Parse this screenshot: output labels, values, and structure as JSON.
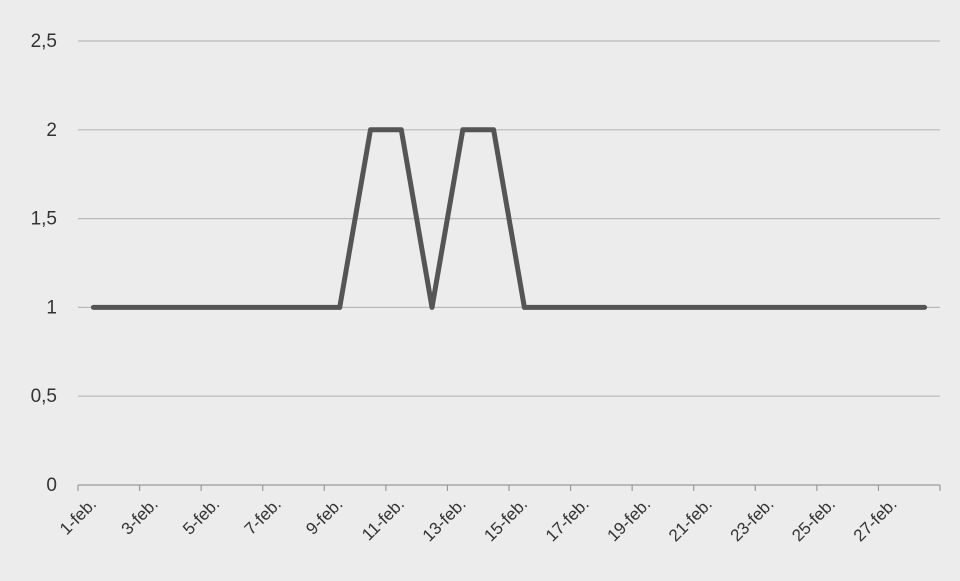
{
  "chart_data": {
    "type": "line",
    "title": "",
    "xlabel": "",
    "ylabel": "",
    "ylim": [
      0,
      2.5
    ],
    "yticks": [
      "0",
      "0,5",
      "1",
      "1,5",
      "2",
      "2,5"
    ],
    "ytick_values": [
      0,
      0.5,
      1,
      1.5,
      2,
      2.5
    ],
    "x": [
      "1-feb.",
      "2-feb.",
      "3-feb.",
      "4-feb.",
      "5-feb.",
      "6-feb.",
      "7-feb.",
      "8-feb.",
      "9-feb.",
      "10-feb.",
      "11-feb.",
      "12-feb.",
      "13-feb.",
      "14-feb.",
      "15-feb.",
      "16-feb.",
      "17-feb.",
      "18-feb.",
      "19-feb.",
      "20-feb.",
      "21-feb.",
      "22-feb.",
      "23-feb.",
      "24-feb.",
      "25-feb.",
      "26-feb.",
      "27-feb.",
      "28-feb."
    ],
    "xtick_labels": [
      "1-feb.",
      "3-feb.",
      "5-feb.",
      "7-feb.",
      "9-feb.",
      "11-feb.",
      "13-feb.",
      "15-feb.",
      "17-feb.",
      "19-feb.",
      "21-feb.",
      "23-feb.",
      "25-feb.",
      "27-feb."
    ],
    "series": [
      {
        "values": [
          1,
          1,
          1,
          1,
          1,
          1,
          1,
          1,
          1,
          2,
          2,
          1,
          2,
          2,
          1,
          1,
          1,
          1,
          1,
          1,
          1,
          1,
          1,
          1,
          1,
          1,
          1,
          1
        ]
      }
    ],
    "grid": true,
    "colors": {
      "line": "#555555",
      "grid": "#b9b9b9",
      "background": "#ececec"
    }
  }
}
